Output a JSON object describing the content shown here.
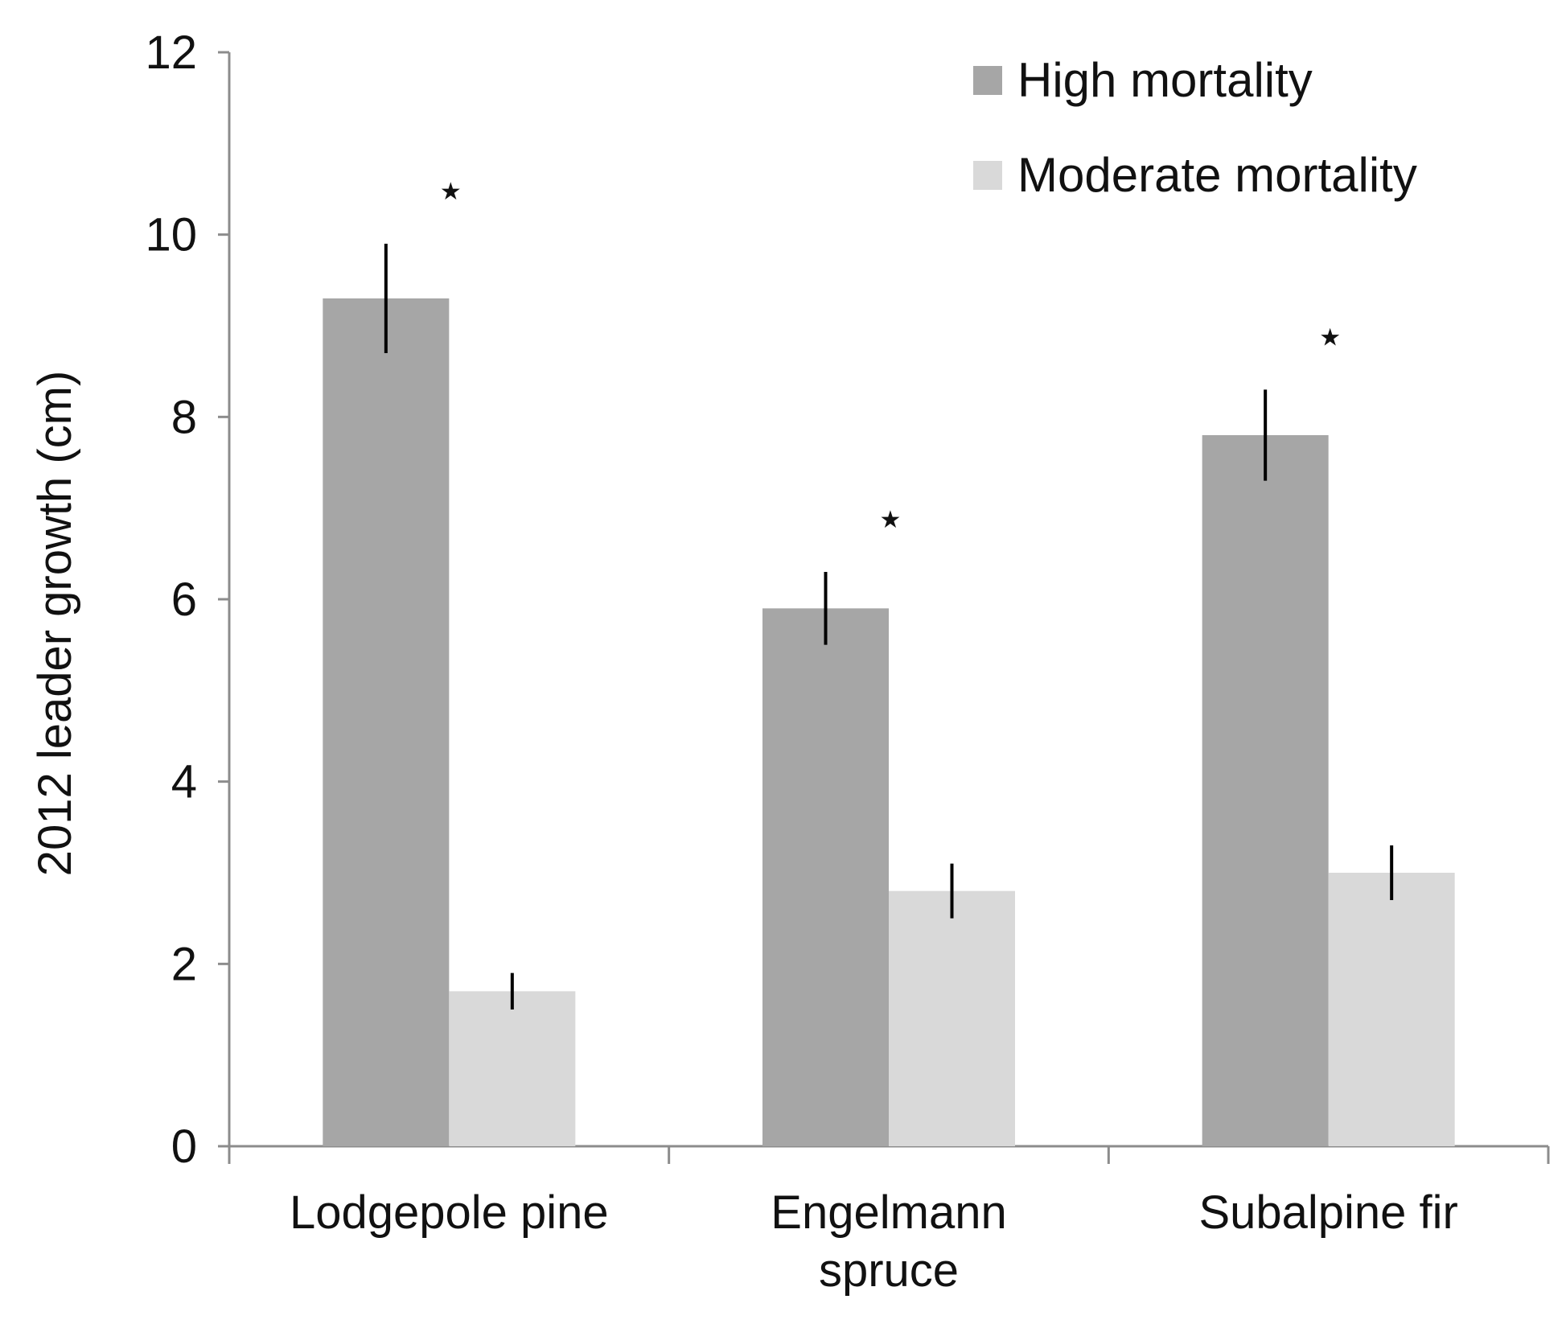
{
  "chart_data": {
    "type": "bar",
    "title": "",
    "xlabel": "",
    "ylabel": "2012 leader growth (cm)",
    "ylim": [
      0,
      12
    ],
    "yticks": [
      "0",
      "2",
      "4",
      "6",
      "8",
      "10",
      "12"
    ],
    "grid": false,
    "legend_position": "top-right",
    "categories": [
      [
        "Lodgepole pine"
      ],
      [
        "Engelmann",
        "spruce"
      ],
      [
        "Subalpine fir"
      ]
    ],
    "series": [
      {
        "name": "High mortality",
        "color": "#a6a6a6",
        "values": [
          9.3,
          5.9,
          7.8
        ],
        "error": [
          0.6,
          0.4,
          0.5
        ]
      },
      {
        "name": "Moderate mortality",
        "color": "#d9d9d9",
        "values": [
          1.7,
          2.8,
          3.0
        ],
        "error": [
          0.2,
          0.3,
          0.3
        ]
      }
    ],
    "significance": [
      {
        "category": 0,
        "label": "★"
      },
      {
        "category": 1,
        "label": "★"
      },
      {
        "category": 2,
        "label": "★"
      }
    ]
  }
}
